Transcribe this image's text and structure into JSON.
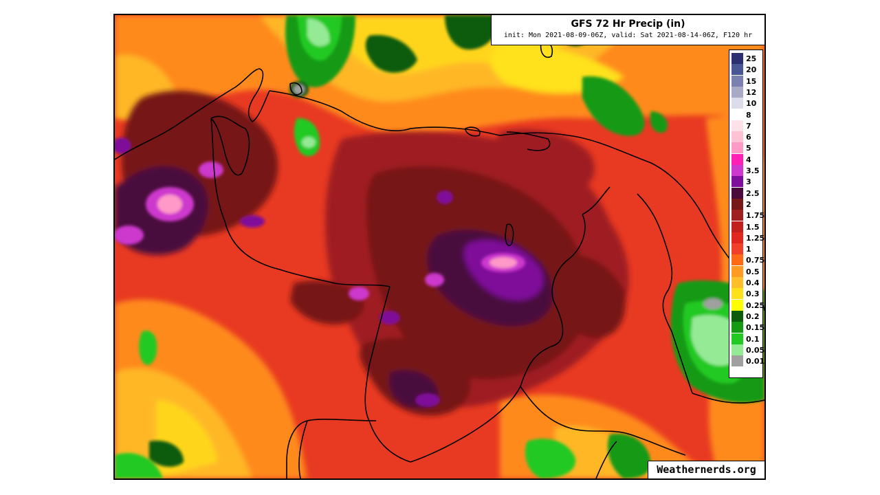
{
  "title": "GFS 72 Hr Precip (in)",
  "subtitle": "init: Mon 2021-08-09-06Z, valid: Sat 2021-08-14-06Z, F120 hr",
  "credit": "Weathernerds.org",
  "legend": [
    {
      "label": "25",
      "color": "#2b3070"
    },
    {
      "label": "20",
      "color": "#4a5795"
    },
    {
      "label": "15",
      "color": "#7a80b0"
    },
    {
      "label": "12",
      "color": "#a8aac6"
    },
    {
      "label": "10",
      "color": "#dcdcea"
    },
    {
      "label": "8",
      "color": "#ffffff"
    },
    {
      "label": "7",
      "color": "#ffe1e9"
    },
    {
      "label": "6",
      "color": "#ffc1d4"
    },
    {
      "label": "5",
      "color": "#ff99c8"
    },
    {
      "label": "4",
      "color": "#ff1fb4"
    },
    {
      "label": "3.5",
      "color": "#cd39cd"
    },
    {
      "label": "3",
      "color": "#7f0f9a"
    },
    {
      "label": "2.5",
      "color": "#4a0a3c"
    },
    {
      "label": "2",
      "color": "#771818"
    },
    {
      "label": "1.75",
      "color": "#9f1f20"
    },
    {
      "label": "1.5",
      "color": "#c21f1f"
    },
    {
      "label": "1.25",
      "color": "#e1261d"
    },
    {
      "label": "1",
      "color": "#f1402a"
    },
    {
      "label": "0.75",
      "color": "#ff6a16"
    },
    {
      "label": "0.5",
      "color": "#ff9a22"
    },
    {
      "label": "0.4",
      "color": "#ffbf2a"
    },
    {
      "label": "0.3",
      "color": "#ffe11b"
    },
    {
      "label": "0.25",
      "color": "#ffff00"
    },
    {
      "label": "0.2",
      "color": "#0b5c0b"
    },
    {
      "label": "0.15",
      "color": "#169a16"
    },
    {
      "label": "0.1",
      "color": "#22c922"
    },
    {
      "label": "0.05",
      "color": "#95ea95"
    },
    {
      "label": "0.01",
      "color": "#a0a0a0"
    },
    {
      "label": "",
      "color": "#ffffff"
    }
  ]
}
